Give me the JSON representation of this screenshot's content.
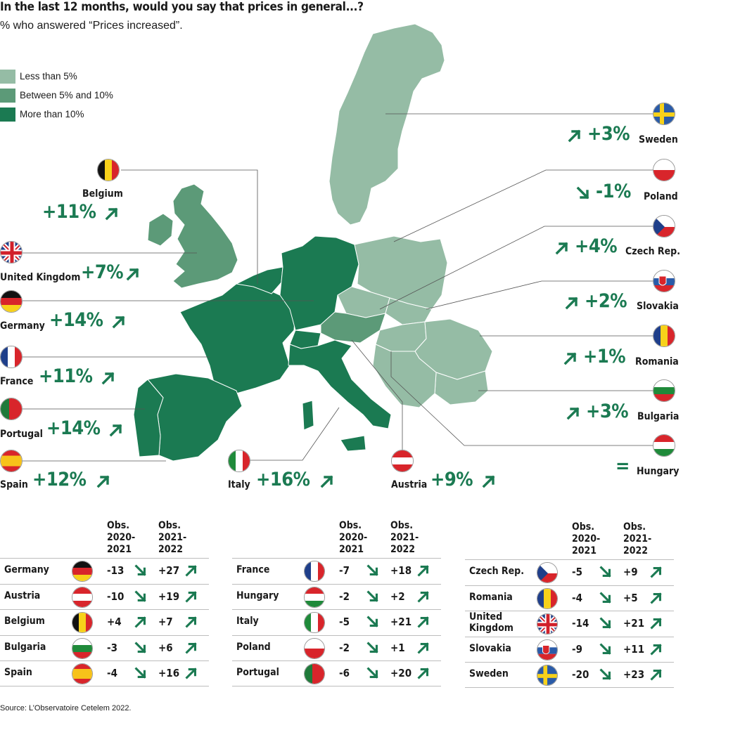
{
  "title": "In the last 12 months, would you say that prices in general...?",
  "subtitle": "% who answered “Prices increased”.",
  "legend": [
    {
      "label": "Less than 5%",
      "color": "#95bca5"
    },
    {
      "label": "Between 5% and 10%",
      "color": "#5c9a78"
    },
    {
      "label": "More than 10%",
      "color": "#1b7a52"
    }
  ],
  "colors": {
    "accent": "#1b7a52",
    "light": "#95bca5",
    "medium": "#5c9a78",
    "dark": "#1b7a52"
  },
  "map_callouts": [
    {
      "country": "Belgium",
      "value": "+11%",
      "trend": "up"
    },
    {
      "country": "United Kingdom",
      "value": "+7%",
      "trend": "up"
    },
    {
      "country": "Germany",
      "value": "+14%",
      "trend": "up"
    },
    {
      "country": "France",
      "value": "+11%",
      "trend": "up"
    },
    {
      "country": "Portugal",
      "value": "+14%",
      "trend": "up"
    },
    {
      "country": "Spain",
      "value": "+12%",
      "trend": "up"
    },
    {
      "country": "Italy",
      "value": "+16%",
      "trend": "up"
    },
    {
      "country": "Austria",
      "value": "+9%",
      "trend": "up"
    },
    {
      "country": "Sweden",
      "value": "+3%",
      "trend": "up"
    },
    {
      "country": "Poland",
      "value": "-1%",
      "trend": "down"
    },
    {
      "country": "Czech Rep.",
      "value": "+4%",
      "trend": "up"
    },
    {
      "country": "Slovakia",
      "value": "+2%",
      "trend": "up"
    },
    {
      "country": "Romania",
      "value": "+1%",
      "trend": "up"
    },
    {
      "country": "Bulgaria",
      "value": "+3%",
      "trend": "up"
    },
    {
      "country": "Hungary",
      "value": "=",
      "trend": "equal"
    }
  ],
  "table_headers": {
    "obs1": "Obs.\n2020-\n2021",
    "obs2": "Obs.\n2021-\n2022"
  },
  "tables": [
    [
      {
        "country": "Germany",
        "o1": "-13",
        "o2": "+27"
      },
      {
        "country": "Austria",
        "o1": "-10",
        "o2": "+19"
      },
      {
        "country": "Belgium",
        "o1": "+4",
        "o2": "+7"
      },
      {
        "country": "Bulgaria",
        "o1": "-3",
        "o2": "+6"
      },
      {
        "country": "Spain",
        "o1": "-4",
        "o2": "+16"
      }
    ],
    [
      {
        "country": "France",
        "o1": "-7",
        "o2": "+18"
      },
      {
        "country": "Hungary",
        "o1": "-2",
        "o2": "+2"
      },
      {
        "country": "Italy",
        "o1": "-5",
        "o2": "+21"
      },
      {
        "country": "Poland",
        "o1": "-2",
        "o2": "+1"
      },
      {
        "country": "Portugal",
        "o1": "-6",
        "o2": "+20"
      }
    ],
    [
      {
        "country": "Czech Rep.",
        "o1": "-5",
        "o2": "+9"
      },
      {
        "country": "Romania",
        "o1": "-4",
        "o2": "+5"
      },
      {
        "country": "United\nKingdom",
        "o1": "-14",
        "o2": "+21"
      },
      {
        "country": "Slovakia",
        "o1": "-9",
        "o2": "+11"
      },
      {
        "country": "Sweden",
        "o1": "-20",
        "o2": "+23"
      }
    ]
  ],
  "source": "Source: L’Observatoire Cetelem 2022."
}
